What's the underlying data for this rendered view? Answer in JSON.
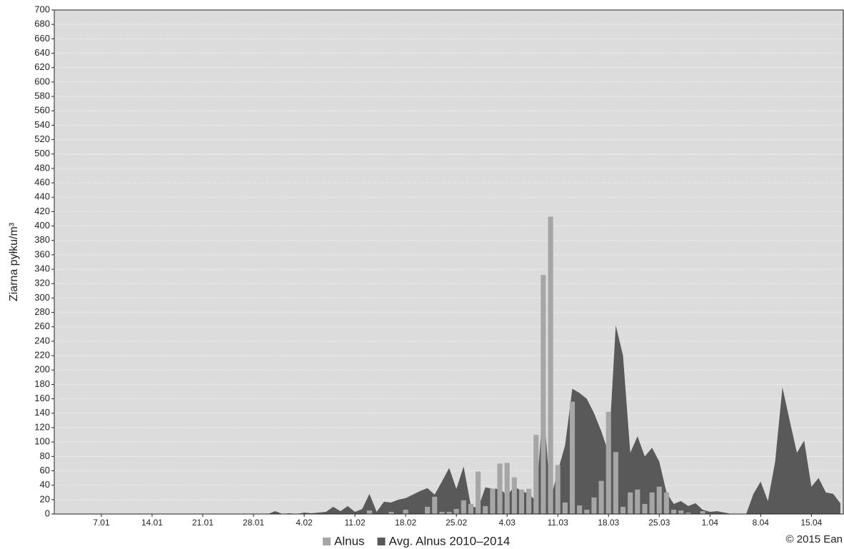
{
  "chart_data": {
    "type": "bar+area",
    "y_label": "Ziarna pyłku/m³",
    "credit": "© 2015 Ean",
    "categories": [
      null,
      null,
      null,
      null,
      null,
      null,
      "7.01",
      null,
      null,
      null,
      null,
      null,
      null,
      "14.01",
      null,
      null,
      null,
      null,
      null,
      null,
      "21.01",
      null,
      null,
      null,
      null,
      null,
      null,
      "28.01",
      null,
      null,
      null,
      null,
      null,
      null,
      "4.02",
      null,
      null,
      null,
      null,
      null,
      null,
      "11.02",
      null,
      null,
      null,
      null,
      null,
      null,
      "18.02",
      null,
      null,
      null,
      null,
      null,
      null,
      "25.02",
      null,
      null,
      null,
      null,
      null,
      null,
      "4.03",
      null,
      null,
      null,
      null,
      null,
      null,
      "11.03",
      null,
      null,
      null,
      null,
      null,
      null,
      "18.03",
      null,
      null,
      null,
      null,
      null,
      null,
      "25.03",
      null,
      null,
      null,
      null,
      null,
      null,
      "1.04",
      null,
      null,
      null,
      null,
      null,
      null,
      "8.04",
      null,
      null,
      null,
      null,
      null,
      null,
      "15.04",
      null,
      null,
      null,
      null
    ],
    "series": [
      {
        "name": "Alnus",
        "type": "bar",
        "color": "#a6a6a6",
        "values": [
          0,
          0,
          0,
          0,
          0,
          0,
          0,
          0,
          0,
          0,
          0,
          0,
          0,
          0,
          0,
          0,
          0,
          0,
          0,
          0,
          0,
          0,
          0,
          0,
          0,
          0,
          0,
          0,
          0,
          0,
          0,
          0,
          0,
          0,
          0,
          0,
          0,
          0,
          0,
          0,
          0,
          0,
          0,
          5,
          0,
          0,
          3,
          0,
          6,
          0,
          0,
          10,
          24,
          3,
          3,
          7,
          19,
          14,
          59,
          11,
          35,
          70,
          71,
          51,
          34,
          35,
          110,
          332,
          413,
          68,
          16,
          156,
          12,
          6,
          23,
          46,
          142,
          86,
          10,
          30,
          34,
          14,
          30,
          38,
          30,
          6,
          5,
          2,
          0,
          4,
          0,
          0,
          0,
          0,
          0,
          0,
          0,
          0,
          0,
          0,
          0,
          0,
          0,
          0,
          0,
          0,
          0,
          0,
          0
        ]
      },
      {
        "name": "Avg. Alnus 2010–2014",
        "type": "area",
        "color": "#595959",
        "values": [
          0,
          0,
          0,
          0,
          0,
          0,
          0,
          0,
          0,
          0,
          0,
          0,
          0,
          0,
          0,
          0,
          0,
          0,
          0,
          0,
          0,
          0,
          0,
          0,
          0,
          0,
          0,
          0,
          0,
          0,
          4,
          0,
          1,
          0,
          2,
          1,
          2,
          3,
          10,
          4,
          11,
          3,
          7,
          28,
          3,
          17,
          16,
          20,
          22,
          27,
          32,
          36,
          27,
          45,
          64,
          35,
          66,
          11,
          8,
          37,
          35,
          35,
          26,
          38,
          32,
          28,
          18,
          156,
          20,
          60,
          95,
          174,
          168,
          160,
          140,
          115,
          85,
          262,
          220,
          85,
          108,
          80,
          92,
          73,
          30,
          14,
          18,
          11,
          15,
          6,
          3,
          4,
          2,
          0,
          0,
          0,
          28,
          45,
          18,
          73,
          176,
          130,
          85,
          102,
          38,
          50,
          30,
          28,
          15
        ]
      }
    ],
    "ylim": [
      0,
      700
    ],
    "yticks": [
      0,
      20,
      40,
      60,
      80,
      100,
      120,
      140,
      160,
      180,
      200,
      220,
      240,
      260,
      280,
      300,
      320,
      340,
      360,
      380,
      400,
      420,
      440,
      460,
      480,
      500,
      520,
      540,
      560,
      580,
      600,
      620,
      640,
      660,
      680,
      700
    ],
    "grid": true
  }
}
